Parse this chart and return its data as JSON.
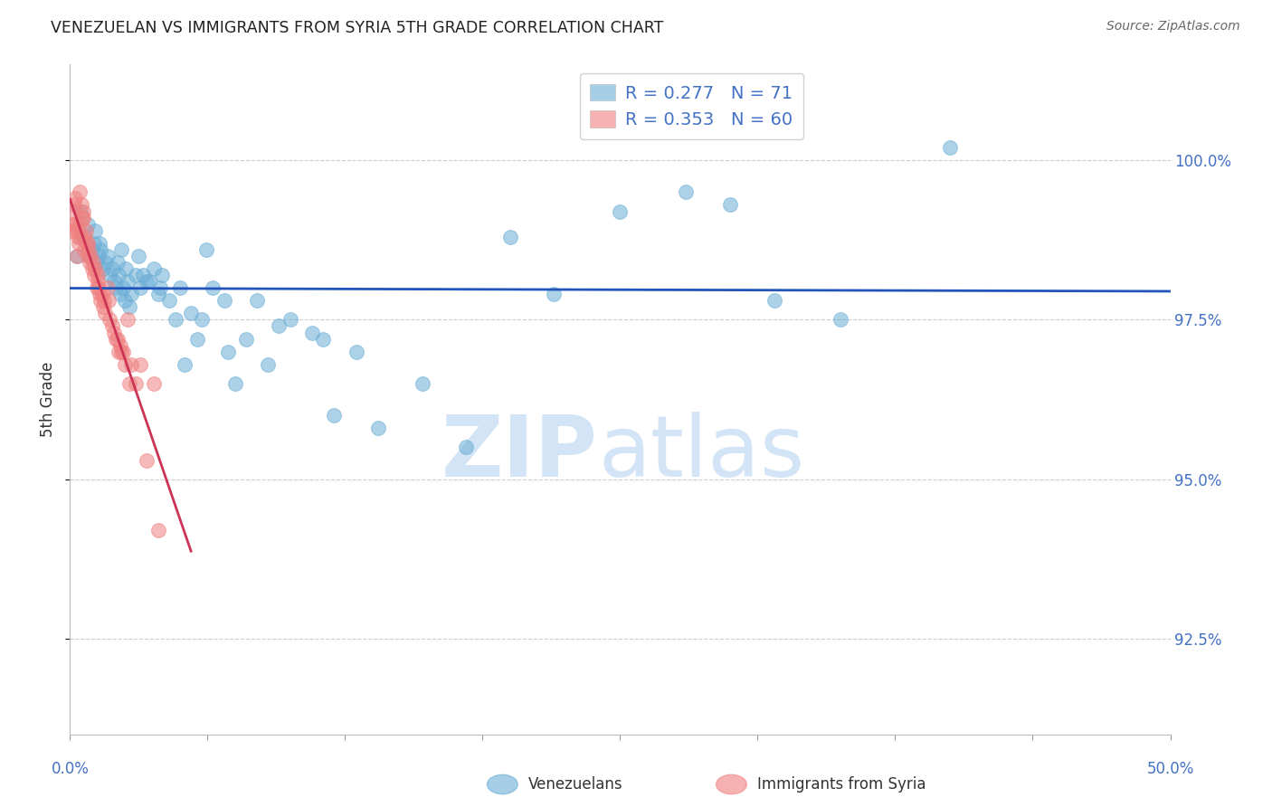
{
  "title": "VENEZUELAN VS IMMIGRANTS FROM SYRIA 5TH GRADE CORRELATION CHART",
  "source": "Source: ZipAtlas.com",
  "ylabel": "5th Grade",
  "xlim": [
    0.0,
    50.0
  ],
  "ylim": [
    91.0,
    101.5
  ],
  "yticks": [
    92.5,
    95.0,
    97.5,
    100.0
  ],
  "ytick_labels": [
    "92.5%",
    "95.0%",
    "97.5%",
    "100.0%"
  ],
  "legend_R1": "R = 0.277",
  "legend_N1": "N = 71",
  "legend_R2": "R = 0.353",
  "legend_N2": "N = 60",
  "legend_label1": "Venezuelans",
  "legend_label2": "Immigrants from Syria",
  "blue_color": "#6baed6",
  "pink_color": "#f08080",
  "line_blue": "#2255bb",
  "line_pink": "#cc3355",
  "background_color": "#ffffff",
  "grid_color": "#cccccc",
  "axis_color": "#4472c4",
  "title_color": "#222222",
  "source_color": "#666666",
  "blue_x": [
    0.3,
    0.5,
    0.6,
    0.8,
    1.0,
    1.1,
    1.2,
    1.3,
    1.4,
    1.5,
    1.6,
    1.7,
    1.8,
    1.9,
    2.0,
    2.1,
    2.2,
    2.3,
    2.4,
    2.5,
    2.6,
    2.7,
    2.8,
    3.0,
    3.2,
    3.5,
    3.8,
    4.0,
    4.2,
    4.5,
    5.0,
    5.5,
    6.0,
    6.5,
    7.0,
    7.5,
    8.0,
    9.0,
    10.0,
    11.0,
    12.0,
    14.0,
    16.0,
    18.0,
    20.0,
    22.0,
    25.0,
    28.0,
    30.0,
    32.0,
    35.0,
    40.0,
    0.9,
    1.15,
    1.35,
    2.15,
    2.35,
    2.55,
    3.1,
    3.3,
    3.6,
    4.1,
    4.8,
    5.2,
    5.8,
    6.2,
    7.2,
    8.5,
    9.5,
    11.5,
    13.0
  ],
  "blue_y": [
    98.5,
    99.2,
    98.8,
    99.0,
    98.6,
    98.7,
    98.4,
    98.5,
    98.6,
    98.3,
    98.4,
    98.5,
    98.2,
    98.3,
    98.1,
    98.0,
    98.2,
    97.9,
    98.0,
    97.8,
    98.1,
    97.7,
    97.9,
    98.2,
    98.0,
    98.1,
    98.3,
    97.9,
    98.2,
    97.8,
    98.0,
    97.6,
    97.5,
    98.0,
    97.8,
    96.5,
    97.2,
    96.8,
    97.5,
    97.3,
    96.0,
    95.8,
    96.5,
    95.5,
    98.8,
    97.9,
    99.2,
    99.5,
    99.3,
    97.8,
    97.5,
    100.2,
    98.5,
    98.9,
    98.7,
    98.4,
    98.6,
    98.3,
    98.5,
    98.2,
    98.1,
    98.0,
    97.5,
    96.8,
    97.2,
    98.6,
    97.0,
    97.8,
    97.4,
    97.2,
    97.0
  ],
  "pink_x": [
    0.1,
    0.15,
    0.2,
    0.25,
    0.3,
    0.35,
    0.4,
    0.45,
    0.5,
    0.55,
    0.6,
    0.65,
    0.7,
    0.75,
    0.8,
    0.85,
    0.9,
    0.95,
    1.0,
    1.05,
    1.1,
    1.15,
    1.2,
    1.25,
    1.3,
    1.35,
    1.4,
    1.5,
    1.6,
    1.7,
    1.8,
    1.9,
    2.0,
    2.1,
    2.2,
    2.3,
    2.4,
    2.5,
    2.6,
    2.7,
    2.8,
    3.0,
    3.5,
    4.0,
    1.45,
    1.55,
    0.42,
    0.62,
    0.72,
    0.82,
    0.52,
    0.32,
    0.22,
    0.12,
    2.15,
    2.35,
    1.25,
    1.75,
    3.2,
    3.8
  ],
  "pink_y": [
    98.9,
    99.2,
    99.3,
    99.0,
    98.9,
    98.8,
    98.7,
    99.0,
    98.8,
    99.1,
    99.2,
    98.6,
    98.8,
    98.7,
    98.5,
    98.6,
    98.4,
    98.5,
    98.3,
    98.4,
    98.2,
    98.3,
    98.0,
    98.1,
    98.0,
    97.9,
    97.8,
    97.7,
    97.6,
    98.0,
    97.5,
    97.4,
    97.3,
    97.2,
    97.0,
    97.1,
    97.0,
    96.8,
    97.5,
    96.5,
    96.8,
    96.5,
    95.3,
    94.2,
    97.9,
    97.8,
    99.5,
    99.1,
    98.9,
    98.7,
    99.3,
    98.5,
    99.4,
    99.0,
    97.2,
    97.0,
    98.2,
    97.8,
    96.8,
    96.5
  ]
}
